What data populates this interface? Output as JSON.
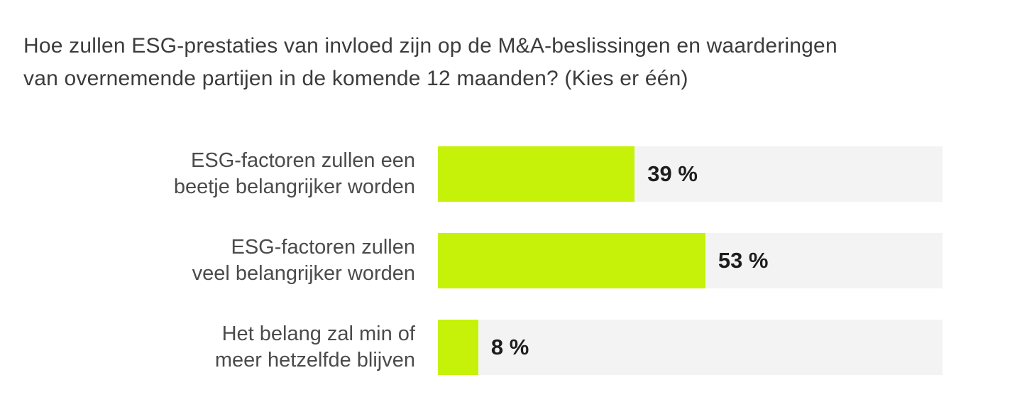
{
  "title": {
    "line1": "Hoe zullen ESG-prestaties van invloed zijn op de M&A-beslissingen en waarderingen",
    "line2": "van overnemende partijen in de komende 12 maanden? (Kies er één)"
  },
  "rows": [
    {
      "label_line1": "ESG-factoren zullen een",
      "label_line2": "beetje belangrijker worden"
    },
    {
      "label_line1": "ESG-factoren zullen",
      "label_line2": "veel belangrijker worden"
    },
    {
      "label_line1": "Het belang zal min of",
      "label_line2": "meer hetzelfde blijven"
    }
  ],
  "chart_data": {
    "type": "bar",
    "orientation": "horizontal",
    "title": "Hoe zullen ESG-prestaties van invloed zijn op de M&A-beslissingen en waarderingen van overnemende partijen in de komende 12 maanden? (Kies er één)",
    "categories": [
      "ESG-factoren zullen een beetje belangrijker worden",
      "ESG-factoren zullen veel belangrijker worden",
      "Het belang zal min of meer hetzelfde blijven"
    ],
    "values": [
      39,
      53,
      8
    ],
    "value_labels": [
      "39 %",
      "53 %",
      "8 %"
    ],
    "xlim": [
      0,
      100
    ],
    "grid": false,
    "legend": false,
    "bar_color": "#c5f208",
    "track_color": "#f3f3f4",
    "value_text_color": "#1d1d1d",
    "label_text_color": "#4b4b4b",
    "title_text_color": "#3c3c3c"
  }
}
